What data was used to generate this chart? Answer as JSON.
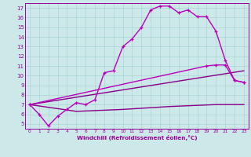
{
  "background_color": "#cce8e8",
  "line_color": "#990099",
  "grid_color": "#aad4d4",
  "xlabel": "Windchill (Refroidissement éolien,°C)",
  "xlabel_color": "#990099",
  "xlim": [
    -0.5,
    23.5
  ],
  "ylim": [
    4.5,
    17.5
  ],
  "yticks": [
    5,
    6,
    7,
    8,
    9,
    10,
    11,
    12,
    13,
    14,
    15,
    16,
    17
  ],
  "xticks": [
    0,
    1,
    2,
    3,
    4,
    5,
    6,
    7,
    8,
    9,
    10,
    11,
    12,
    13,
    14,
    15,
    16,
    17,
    18,
    19,
    20,
    21,
    22,
    23
  ],
  "series": [
    {
      "x": [
        0,
        1,
        2,
        3,
        4,
        5,
        6,
        7,
        8,
        9,
        10,
        11,
        12,
        13,
        14,
        15,
        16,
        17,
        18,
        19,
        20,
        21,
        22,
        23
      ],
      "y": [
        7.0,
        6.0,
        4.8,
        5.8,
        6.5,
        7.2,
        7.0,
        7.5,
        10.3,
        10.5,
        13.0,
        13.8,
        15.0,
        16.8,
        17.2,
        17.2,
        16.5,
        16.8,
        16.1,
        16.1,
        14.6,
        11.6,
        9.5,
        9.3
      ],
      "marker": "+",
      "color": "#bb00bb",
      "linewidth": 1.0,
      "markersize": 3.5,
      "markeredgewidth": 0.9,
      "zorder": 3
    },
    {
      "x": [
        0,
        5,
        10,
        15,
        20,
        23
      ],
      "y": [
        7.0,
        6.3,
        6.5,
        6.8,
        7.0,
        7.0
      ],
      "marker": null,
      "color": "#880088",
      "linewidth": 1.0,
      "markersize": 0,
      "markeredgewidth": 0,
      "zorder": 2
    },
    {
      "x": [
        0,
        23
      ],
      "y": [
        7.0,
        10.5
      ],
      "marker": null,
      "color": "#880088",
      "linewidth": 1.0,
      "markersize": 0,
      "markeredgewidth": 0,
      "zorder": 2
    },
    {
      "x": [
        0,
        19,
        20,
        21,
        22,
        23
      ],
      "y": [
        7.0,
        11.0,
        11.1,
        11.1,
        9.5,
        9.3
      ],
      "marker": "+",
      "color": "#bb00bb",
      "linewidth": 1.0,
      "markersize": 3.5,
      "markeredgewidth": 0.9,
      "zorder": 2
    }
  ]
}
